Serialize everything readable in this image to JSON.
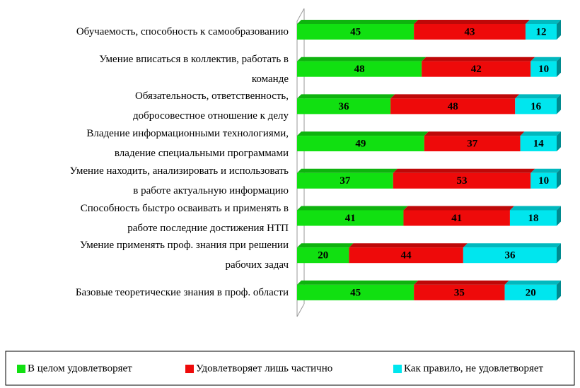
{
  "chart_data": {
    "type": "stacked_bar_horizontal",
    "categories": [
      "Обучаемость, способность к самообразованию",
      "Умение вписаться в коллектив, работать в\nкоманде",
      "Обязательность, ответственность,\nдобросовестное отношение к делу",
      "Владение информационными технологиями,\nвладение специальными программами",
      "Умение находить, анализировать и использовать\nв работе актуальную информацию",
      "Способность быстро осваивать и применять в\nработе последние достижения НТП",
      "Умение применять проф. знания при решении\nрабочих задач",
      "Базовые теоретические знания в проф. области"
    ],
    "series": [
      {
        "name": "В целом удовлетворяет",
        "color": "#11e011",
        "values": [
          45,
          48,
          36,
          49,
          37,
          41,
          20,
          45
        ]
      },
      {
        "name": "Удовлетворяет лишь частично",
        "color": "#ee0a0a",
        "values": [
          43,
          42,
          48,
          37,
          53,
          41,
          44,
          35
        ]
      },
      {
        "name": "Как правило, не удовлетворяет",
        "color": "#00e6ee",
        "values": [
          12,
          10,
          16,
          14,
          10,
          18,
          36,
          20
        ]
      }
    ],
    "xlim": [
      0,
      100
    ],
    "legend": "bottom"
  }
}
